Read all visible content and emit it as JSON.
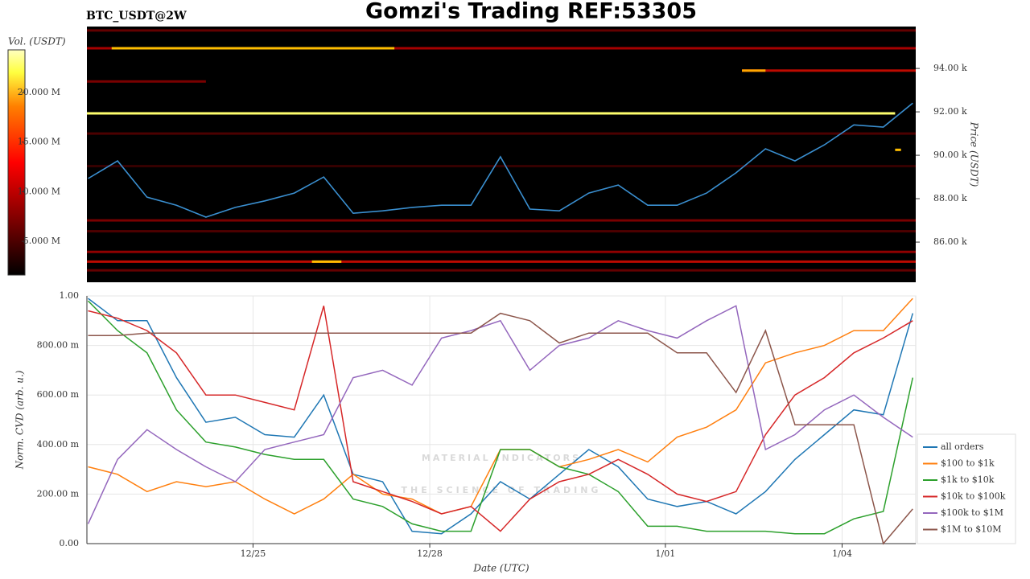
{
  "chart_data": [
    {
      "type": "heatmap",
      "title": "Gomzi's Trading REF:53305",
      "subtitle": "BTC_USDT@2W",
      "ylabel": "Price (USDT)",
      "xlim": [
        0.18,
        14.25
      ],
      "ylim": [
        84150,
        95930
      ],
      "yticks": [
        {
          "value": 86000,
          "label": "86.00 k"
        },
        {
          "value": 88000,
          "label": "88.00 k"
        },
        {
          "value": 90000,
          "label": "90.00 k"
        },
        {
          "value": 92000,
          "label": "92.00 k"
        },
        {
          "value": 94000,
          "label": "94.00 k"
        }
      ],
      "colorbar": {
        "label": "Vol. (USDT)",
        "lim": [
          1600000,
          24300000
        ],
        "ticks": [
          {
            "value": 5000000,
            "label": "5.000 M"
          },
          {
            "value": 10000000,
            "label": "10.000 M"
          },
          {
            "value": 15000000,
            "label": "15.000 M"
          },
          {
            "value": 20000000,
            "label": "20.000 M"
          }
        ]
      },
      "walls": [
        {
          "price": 95750,
          "start": 0.18,
          "end": 14.25,
          "volume": 6000000
        },
        {
          "price": 94930,
          "start": 0.18,
          "end": 14.25,
          "volume": 9000000
        },
        {
          "price": 94930,
          "start": 0.6,
          "end": 5.4,
          "volume": 18000000
        },
        {
          "price": 93900,
          "start": 11.3,
          "end": 14.25,
          "volume": 10000000
        },
        {
          "price": 93900,
          "start": 11.3,
          "end": 11.7,
          "volume": 17000000
        },
        {
          "price": 93400,
          "start": 0.18,
          "end": 2.2,
          "volume": 7000000
        },
        {
          "price": 91930,
          "start": 0.18,
          "end": 13.9,
          "volume": 23000000
        },
        {
          "price": 91000,
          "start": 0.18,
          "end": 14.25,
          "volume": 5000000
        },
        {
          "price": 90250,
          "start": 13.9,
          "end": 14.0,
          "volume": 18000000
        },
        {
          "price": 89500,
          "start": 0.18,
          "end": 14.25,
          "volume": 4000000
        },
        {
          "price": 87000,
          "start": 0.18,
          "end": 14.25,
          "volume": 7000000
        },
        {
          "price": 86500,
          "start": 0.18,
          "end": 14.25,
          "volume": 5000000
        },
        {
          "price": 85550,
          "start": 0.18,
          "end": 14.25,
          "volume": 8000000
        },
        {
          "price": 85100,
          "start": 0.18,
          "end": 14.25,
          "volume": 10000000
        },
        {
          "price": 85100,
          "start": 4.0,
          "end": 4.5,
          "volume": 18000000
        },
        {
          "price": 84700,
          "start": 0.18,
          "end": 14.25,
          "volume": 6000000
        }
      ],
      "x": [
        0.2,
        0.7,
        1.2,
        1.7,
        2.2,
        2.7,
        3.2,
        3.7,
        4.2,
        4.7,
        5.2,
        5.7,
        6.2,
        6.7,
        7.2,
        7.7,
        8.2,
        8.7,
        9.2,
        9.7,
        10.2,
        10.7,
        11.2,
        11.7,
        12.2,
        12.7,
        13.2,
        13.7,
        14.2
      ],
      "series": [
        {
          "color": "#3a8fd0",
          "values": [
            88930,
            89740,
            88070,
            87700,
            87150,
            87600,
            87900,
            88260,
            89000,
            87330,
            87440,
            87600,
            87700,
            87700,
            89930,
            87520,
            87440,
            88260,
            88630,
            87700,
            87700,
            88260,
            89190,
            90300,
            89740,
            90480,
            91400,
            91300,
            92400
          ]
        }
      ]
    },
    {
      "type": "line",
      "xlabel": "Date (UTC)",
      "ylabel": "Norm. CVD (arb. u.)",
      "watermark": [
        "MATERIAL INDICATORS",
        "THE SCIENCE OF TRADING"
      ],
      "xlim": [
        0.18,
        14.25
      ],
      "xticks": [
        {
          "value": 3,
          "label": "12/25"
        },
        {
          "value": 6,
          "label": "12/28"
        },
        {
          "value": 10,
          "label": "1/01"
        },
        {
          "value": 13,
          "label": "1/04"
        }
      ],
      "ylim": [
        0,
        1
      ],
      "yticks": [
        {
          "value": 0,
          "label": "0.00"
        },
        {
          "value": 0.2,
          "label": "200.00 m"
        },
        {
          "value": 0.4,
          "label": "400.00 m"
        },
        {
          "value": 0.6,
          "label": "600.00 m"
        },
        {
          "value": 0.8,
          "label": "800.00 m"
        },
        {
          "value": 1,
          "label": "1.00"
        }
      ],
      "grid": true,
      "legend": "right",
      "x": [
        0.2,
        0.7,
        1.2,
        1.7,
        2.2,
        2.7,
        3.2,
        3.7,
        4.2,
        4.7,
        5.2,
        5.7,
        6.2,
        6.7,
        7.2,
        7.7,
        8.2,
        8.7,
        9.2,
        9.7,
        10.2,
        10.7,
        11.2,
        11.7,
        12.2,
        12.7,
        13.2,
        13.7,
        14.2
      ],
      "series": [
        {
          "name": "all orders",
          "color": "#1f77b4",
          "values": [
            0.99,
            0.9,
            0.9,
            0.67,
            0.49,
            0.51,
            0.44,
            0.43,
            0.6,
            0.28,
            0.25,
            0.05,
            0.04,
            0.12,
            0.25,
            0.18,
            0.28,
            0.38,
            0.31,
            0.18,
            0.15,
            0.17,
            0.12,
            0.21,
            0.34,
            0.44,
            0.54,
            0.52,
            0.93
          ]
        },
        {
          "name": "$100 to $1k",
          "color": "#ff7f0e",
          "values": [
            0.31,
            0.28,
            0.21,
            0.25,
            0.23,
            0.25,
            0.18,
            0.12,
            0.18,
            0.28,
            0.2,
            0.18,
            0.12,
            0.15,
            0.38,
            0.38,
            0.31,
            0.34,
            0.38,
            0.33,
            0.43,
            0.47,
            0.54,
            0.73,
            0.77,
            0.8,
            0.86,
            0.86,
            0.99
          ]
        },
        {
          "name": "$1k to $10k",
          "color": "#2ca02c",
          "values": [
            0.98,
            0.86,
            0.77,
            0.54,
            0.41,
            0.39,
            0.36,
            0.34,
            0.34,
            0.18,
            0.15,
            0.08,
            0.05,
            0.05,
            0.38,
            0.38,
            0.31,
            0.28,
            0.21,
            0.07,
            0.07,
            0.05,
            0.05,
            0.05,
            0.04,
            0.04,
            0.1,
            0.13,
            0.67
          ]
        },
        {
          "name": "$10k to $100k",
          "color": "#d62728",
          "values": [
            0.94,
            0.91,
            0.86,
            0.77,
            0.6,
            0.6,
            0.57,
            0.54,
            0.96,
            0.25,
            0.21,
            0.17,
            0.12,
            0.15,
            0.05,
            0.18,
            0.25,
            0.28,
            0.34,
            0.28,
            0.2,
            0.17,
            0.21,
            0.44,
            0.6,
            0.67,
            0.77,
            0.83,
            0.9
          ]
        },
        {
          "name": "$100k to $1M",
          "color": "#9467bd",
          "values": [
            0.08,
            0.34,
            0.46,
            0.38,
            0.31,
            0.25,
            0.38,
            0.41,
            0.44,
            0.67,
            0.7,
            0.64,
            0.83,
            0.86,
            0.9,
            0.7,
            0.8,
            0.83,
            0.9,
            0.86,
            0.83,
            0.9,
            0.96,
            0.38,
            0.44,
            0.54,
            0.6,
            0.51,
            0.43
          ]
        },
        {
          "name": "$1M to $10M",
          "color": "#8c564b",
          "values": [
            0.84,
            0.84,
            0.85,
            0.85,
            0.85,
            0.85,
            0.85,
            0.85,
            0.85,
            0.85,
            0.85,
            0.85,
            0.85,
            0.85,
            0.93,
            0.9,
            0.81,
            0.85,
            0.85,
            0.85,
            0.77,
            0.77,
            0.61,
            0.86,
            0.48,
            0.48,
            0.48,
            0,
            0.14
          ]
        }
      ]
    }
  ]
}
